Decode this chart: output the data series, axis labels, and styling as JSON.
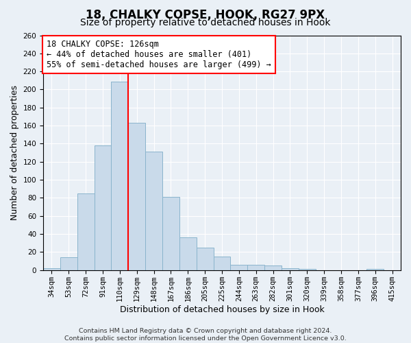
{
  "title": "18, CHALKY COPSE, HOOK, RG27 9PX",
  "subtitle": "Size of property relative to detached houses in Hook",
  "xlabel": "Distribution of detached houses by size in Hook",
  "ylabel": "Number of detached properties",
  "footer_line1": "Contains HM Land Registry data © Crown copyright and database right 2024.",
  "footer_line2": "Contains public sector information licensed under the Open Government Licence v3.0.",
  "categories": [
    "34sqm",
    "53sqm",
    "72sqm",
    "91sqm",
    "110sqm",
    "129sqm",
    "148sqm",
    "167sqm",
    "186sqm",
    "205sqm",
    "225sqm",
    "244sqm",
    "263sqm",
    "282sqm",
    "301sqm",
    "320sqm",
    "339sqm",
    "358sqm",
    "377sqm",
    "396sqm",
    "415sqm"
  ],
  "values": [
    2,
    14,
    85,
    138,
    209,
    163,
    131,
    81,
    36,
    25,
    15,
    6,
    6,
    5,
    2,
    1,
    0,
    0,
    0,
    1,
    0
  ],
  "bar_color": "#c9daea",
  "bar_edge_color": "#8ab4cc",
  "red_line_index": 5,
  "annotation_text": "18 CHALKY COPSE: 126sqm\n← 44% of detached houses are smaller (401)\n55% of semi-detached houses are larger (499) →",
  "annotation_box_color": "white",
  "annotation_box_edge": "red",
  "ylim": [
    0,
    260
  ],
  "yticks": [
    0,
    20,
    40,
    60,
    80,
    100,
    120,
    140,
    160,
    180,
    200,
    220,
    240,
    260
  ],
  "background_color": "#eaf0f6",
  "grid_color": "white",
  "title_fontsize": 12,
  "subtitle_fontsize": 10,
  "axis_label_fontsize": 9,
  "tick_fontsize": 7.5,
  "annotation_fontsize": 8.5,
  "footer_fontsize": 6.8
}
